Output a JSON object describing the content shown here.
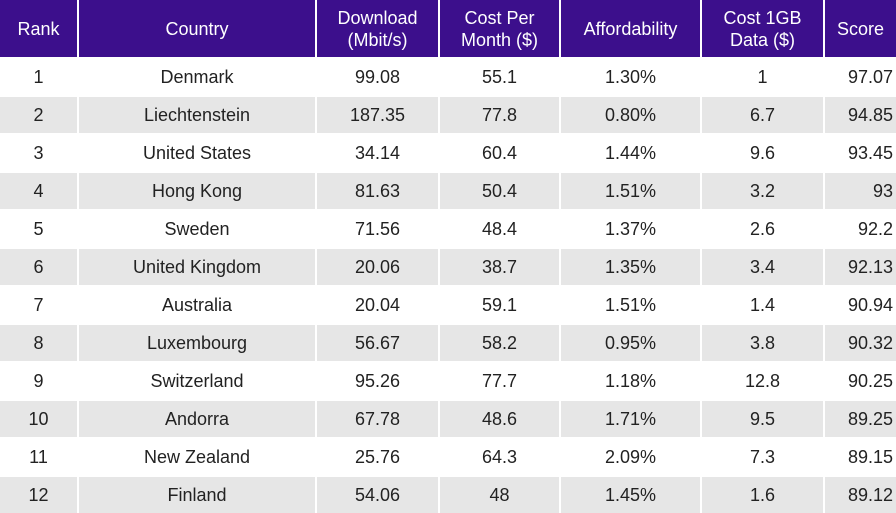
{
  "chart_data": {
    "type": "table",
    "columns": [
      "Rank",
      "Country",
      "Download (Mbit/s)",
      "Cost Per Month ($)",
      "Affordability",
      "Cost 1GB Data ($)",
      "Score"
    ],
    "column_lines": [
      [
        "Rank"
      ],
      [
        "Country"
      ],
      [
        "Download",
        "(Mbit/s)"
      ],
      [
        "Cost Per",
        "Month ($)"
      ],
      [
        "Affordability"
      ],
      [
        "Cost 1GB",
        "Data ($)"
      ],
      [
        "Score"
      ]
    ],
    "rows": [
      [
        "1",
        "Denmark",
        "99.08",
        "55.1",
        "1.30%",
        "1",
        "97.07"
      ],
      [
        "2",
        "Liechtenstein",
        "187.35",
        "77.8",
        "0.80%",
        "6.7",
        "94.85"
      ],
      [
        "3",
        "United States",
        "34.14",
        "60.4",
        "1.44%",
        "9.6",
        "93.45"
      ],
      [
        "4",
        "Hong Kong",
        "81.63",
        "50.4",
        "1.51%",
        "3.2",
        "93"
      ],
      [
        "5",
        "Sweden",
        "71.56",
        "48.4",
        "1.37%",
        "2.6",
        "92.2"
      ],
      [
        "6",
        "United Kingdom",
        "20.06",
        "38.7",
        "1.35%",
        "3.4",
        "92.13"
      ],
      [
        "7",
        "Australia",
        "20.04",
        "59.1",
        "1.51%",
        "1.4",
        "90.94"
      ],
      [
        "8",
        "Luxembourg",
        "56.67",
        "58.2",
        "0.95%",
        "3.8",
        "90.32"
      ],
      [
        "9",
        "Switzerland",
        "95.26",
        "77.7",
        "1.18%",
        "12.8",
        "90.25"
      ],
      [
        "10",
        "Andorra",
        "67.78",
        "48.6",
        "1.71%",
        "9.5",
        "89.25"
      ],
      [
        "11",
        "New Zealand",
        "25.76",
        "64.3",
        "2.09%",
        "7.3",
        "89.15"
      ],
      [
        "12",
        "Finland",
        "54.06",
        "48",
        "1.45%",
        "1.6",
        "89.12"
      ]
    ],
    "colors": {
      "header_bg": "#3c0f8c",
      "header_text": "#ffffff",
      "row_alt_bg": "#e6e6e6",
      "row_bg": "#ffffff",
      "text": "#222222"
    }
  }
}
